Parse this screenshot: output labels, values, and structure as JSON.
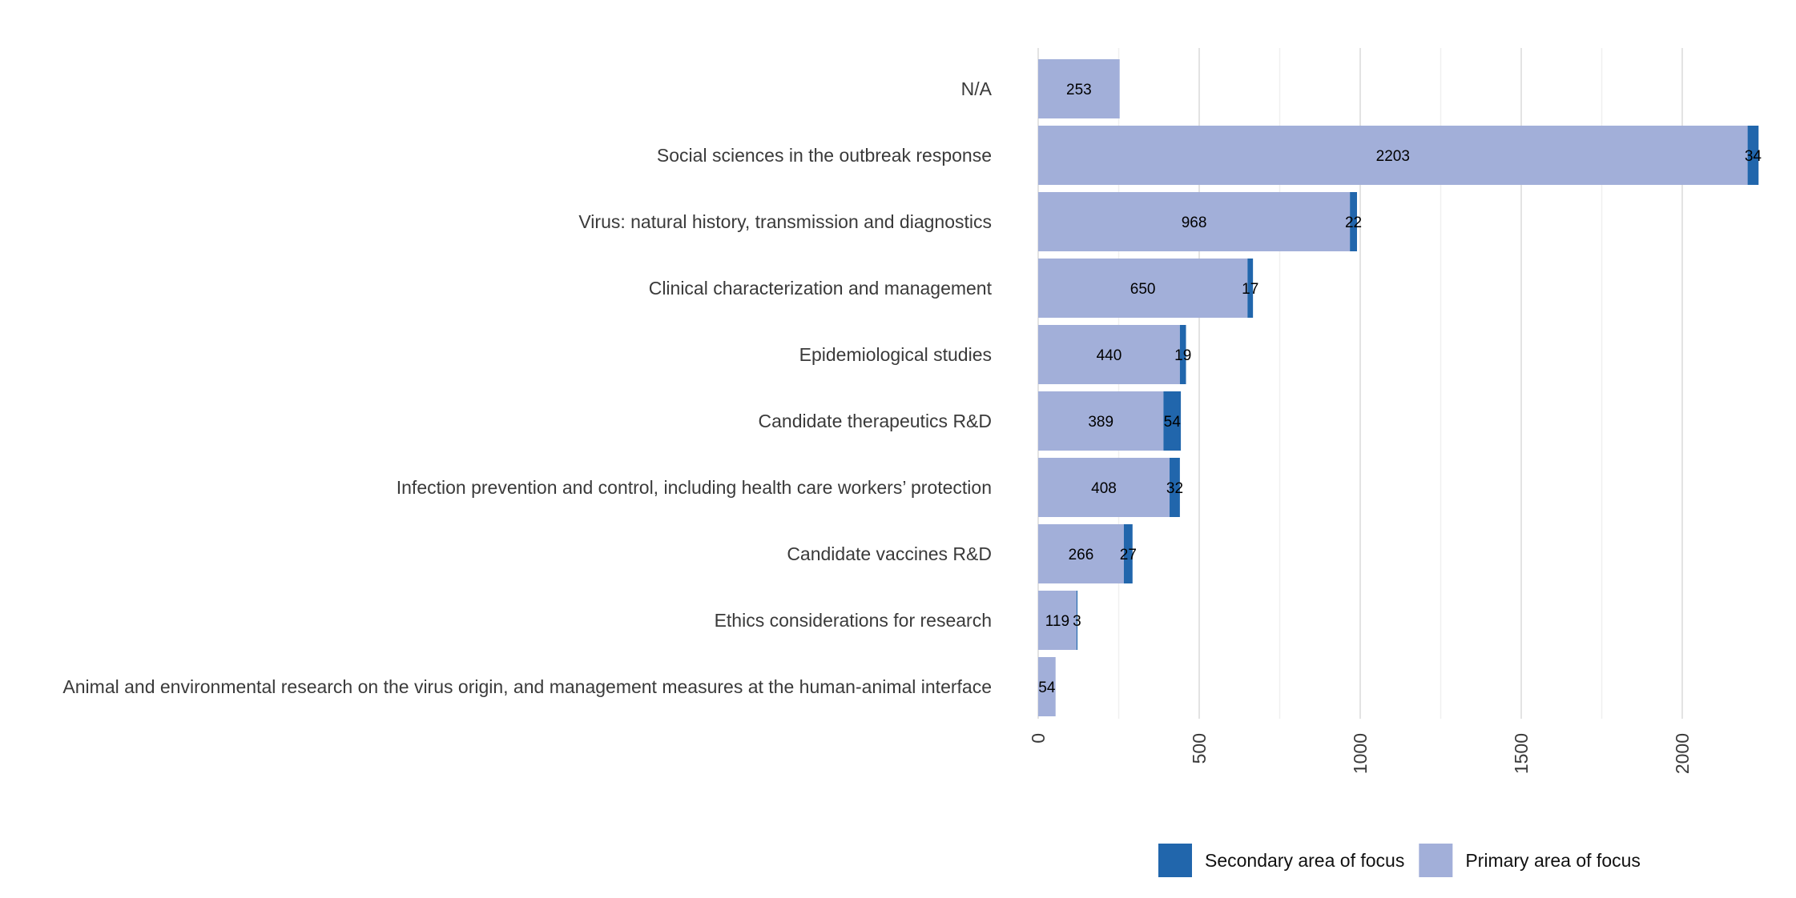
{
  "chart_data": {
    "type": "bar",
    "orientation": "horizontal",
    "stacked": true,
    "categories": [
      "N/A",
      "Social sciences in the outbreak response",
      "Virus: natural history, transmission and diagnostics",
      "Clinical characterization and management",
      "Epidemiological studies",
      "Candidate therapeutics R&D",
      "Infection prevention and control, including health care workers’ protection",
      "Candidate vaccines R&D",
      "Ethics considerations for research",
      "Animal and environmental research on the virus origin, and management measures at the human-animal interface"
    ],
    "series": [
      {
        "name": "Primary area of focus",
        "color": "#a2afd9",
        "values": [
          253,
          2203,
          968,
          650,
          440,
          389,
          408,
          266,
          119,
          54
        ]
      },
      {
        "name": "Secondary area of focus",
        "color": "#2166ac",
        "values": [
          null,
          34,
          22,
          17,
          19,
          54,
          32,
          27,
          3,
          null
        ]
      }
    ],
    "xlim": [
      0,
      2230
    ],
    "xticks": [
      0,
      500,
      1000,
      1500,
      2000
    ],
    "xtick_labels": [
      "0",
      "500",
      "1000",
      "1500",
      "2000"
    ],
    "grid": true,
    "legend_position": "bottom",
    "legend_order": [
      "Secondary area of focus",
      "Primary area of focus"
    ],
    "title": "",
    "xlabel": "",
    "ylabel": ""
  }
}
